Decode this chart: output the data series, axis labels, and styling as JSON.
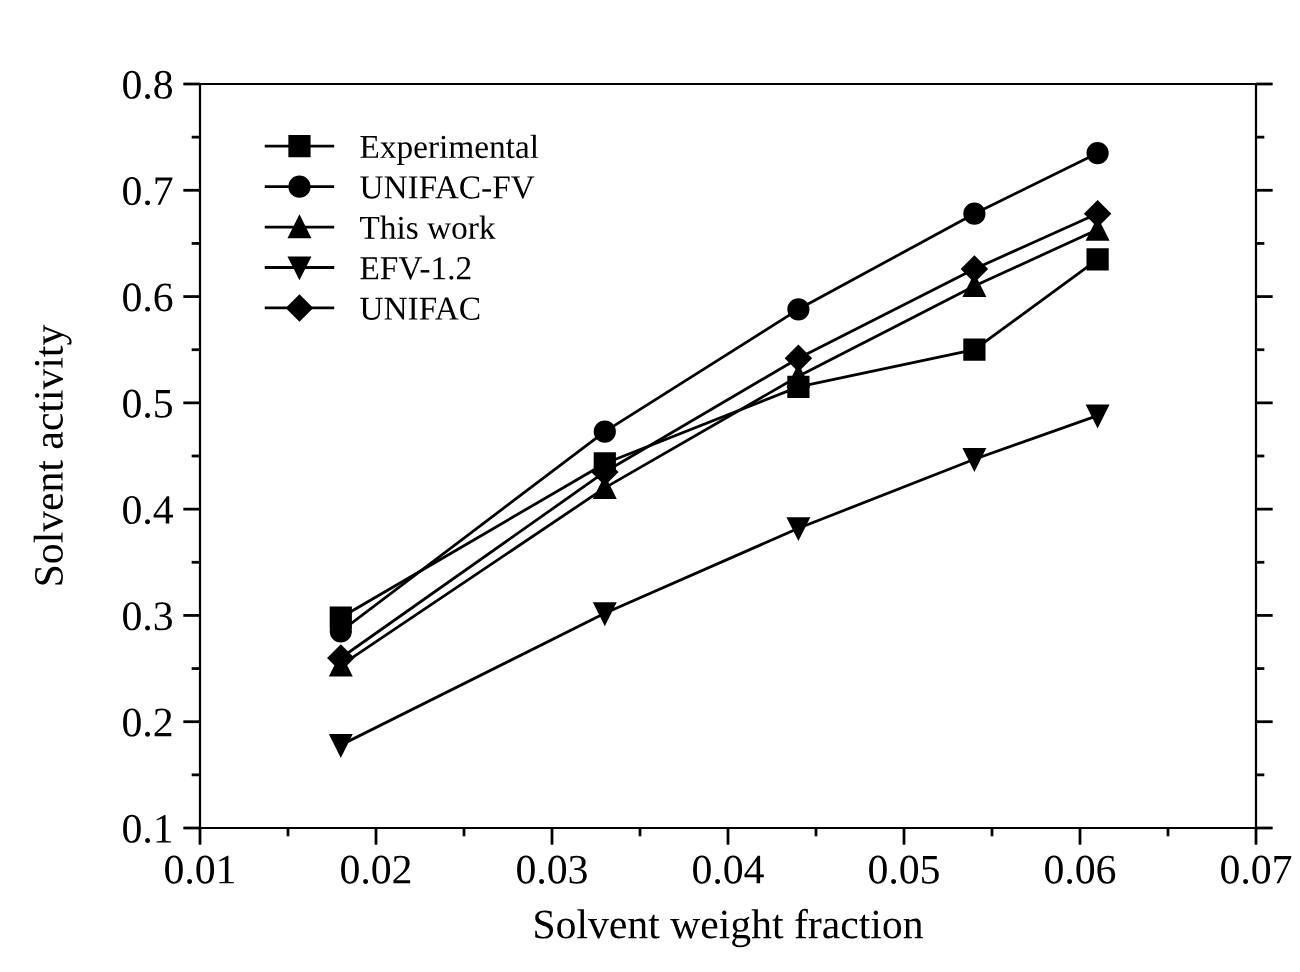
{
  "chart_data": {
    "type": "line",
    "xlabel": "Solvent weight fraction",
    "ylabel": "Solvent activity",
    "x": [
      0.018,
      0.033,
      0.044,
      0.054,
      0.061
    ],
    "series": [
      {
        "name": "Experimental",
        "color": "#000000",
        "marker": "square",
        "values": [
          0.298,
          0.443,
          0.515,
          0.55,
          0.635
        ]
      },
      {
        "name": "UNIFAC-FV",
        "color": "#000000",
        "marker": "circle",
        "values": [
          0.285,
          0.473,
          0.588,
          0.678,
          0.735
        ]
      },
      {
        "name": "This work",
        "color": "#000000",
        "marker": "triangle",
        "values": [
          0.253,
          0.42,
          0.525,
          0.61,
          0.663
        ]
      },
      {
        "name": "EFV-1.2",
        "color": "#000000",
        "marker": "triangle_down",
        "values": [
          0.178,
          0.302,
          0.382,
          0.447,
          0.488
        ]
      },
      {
        "name": "UNIFAC",
        "color": "#000000",
        "marker": "diamond",
        "values": [
          0.26,
          0.435,
          0.542,
          0.626,
          0.678
        ]
      }
    ],
    "xlim": [
      0.01,
      0.07
    ],
    "xticks": [
      0.01,
      {
        "value": 0.015,
        "label": null
      },
      0.02,
      {
        "value": 0.025,
        "label": null
      },
      0.03,
      {
        "value": 0.035,
        "label": null
      },
      0.04,
      {
        "value": 0.045,
        "label": null
      },
      0.05,
      {
        "value": 0.055,
        "label": null
      },
      0.06,
      {
        "value": 0.065,
        "label": null
      },
      0.07
    ],
    "ylim": [
      0.1,
      0.8
    ],
    "yticks": [
      0.1,
      {
        "value": 0.15,
        "label": null
      },
      0.2,
      {
        "value": 0.25,
        "label": null
      },
      0.3,
      {
        "value": 0.35,
        "label": null
      },
      0.4,
      {
        "value": 0.45,
        "label": null
      },
      0.5,
      {
        "value": 0.55,
        "label": null
      },
      0.6,
      {
        "value": 0.65,
        "label": null
      },
      0.7,
      {
        "value": 0.75,
        "label": null
      },
      0.8
    ],
    "grid": false,
    "legend": "top left",
    "line_style": "solid"
  }
}
